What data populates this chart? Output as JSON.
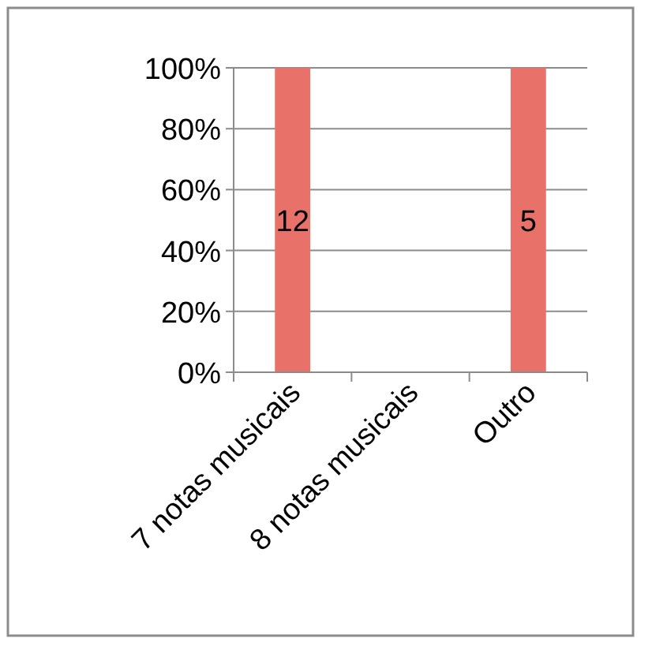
{
  "chart_data": {
    "type": "bar",
    "categories": [
      "7 notas musicais",
      "8 notas musicais",
      "Outro"
    ],
    "values": [
      100,
      null,
      100
    ],
    "color": "#e8716a",
    "ylim": [
      0,
      100
    ],
    "yticks": [
      {
        "value": 0,
        "label": "0%"
      },
      {
        "value": 20,
        "label": "20%"
      },
      {
        "value": 40,
        "label": "40%"
      },
      {
        "value": 60,
        "label": "60%"
      },
      {
        "value": 80,
        "label": "80%"
      },
      {
        "value": 100,
        "label": "100%"
      }
    ],
    "annotations": [
      "12",
      "5"
    ],
    "grid": "y"
  }
}
